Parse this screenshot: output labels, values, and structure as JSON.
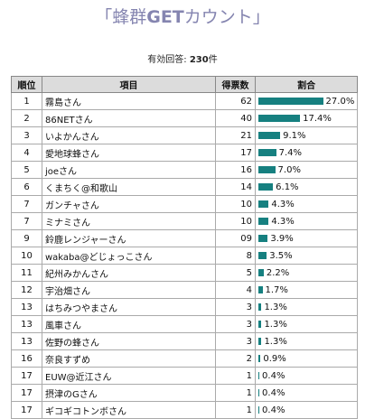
{
  "header": {
    "title_start": "「蜂群",
    "title_bold": "GET",
    "title_end": "カウント」",
    "answers_label": "有効回答: ",
    "answers_count": "230",
    "answers_unit": "件"
  },
  "table": {
    "columns": [
      "順位",
      "項目",
      "得票数",
      "割合"
    ],
    "rows": [
      [
        "1",
        "霧島さん",
        "62",
        "27.0%"
      ],
      [
        "2",
        "86NETさん",
        "40",
        "17.4%"
      ],
      [
        "3",
        "いよかんさん",
        "21",
        "9.1%"
      ],
      [
        "4",
        "愛地球蜂さん",
        "17",
        "7.4%"
      ],
      [
        "5",
        "joeさん",
        "16",
        "7.0%"
      ],
      [
        "6",
        "くまちく@和歌山",
        "14",
        "6.1%"
      ],
      [
        "7",
        "ガンチャさん",
        "10",
        "4.3%"
      ],
      [
        "7",
        "ミナミさん",
        "10",
        "4.3%"
      ],
      [
        "9",
        "鈴鹿レンジャーさん",
        "09",
        "3.9%"
      ],
      [
        "10",
        "wakaba@どじょっこさん",
        "8",
        "3.5%"
      ],
      [
        "11",
        "紀州みかんさん",
        "5",
        "2.2%"
      ],
      [
        "12",
        "宇治畑さん",
        "4",
        "1.7%"
      ],
      [
        "13",
        "はちみつやまさん",
        "3",
        "1.3%"
      ],
      [
        "13",
        "風車さん",
        "3",
        "1.3%"
      ],
      [
        "13",
        "佐野の蜂さん",
        "3",
        "1.3%"
      ],
      [
        "16",
        "奈良すずめ",
        "2",
        "0.9%"
      ],
      [
        "17",
        "EUW@近江さん",
        "1",
        "0.4%"
      ],
      [
        "17",
        "摂津のGさん",
        "1",
        "0.4%"
      ],
      [
        "17",
        "ギコギコトンボさん",
        "1",
        "0.4%"
      ]
    ]
  }
}
